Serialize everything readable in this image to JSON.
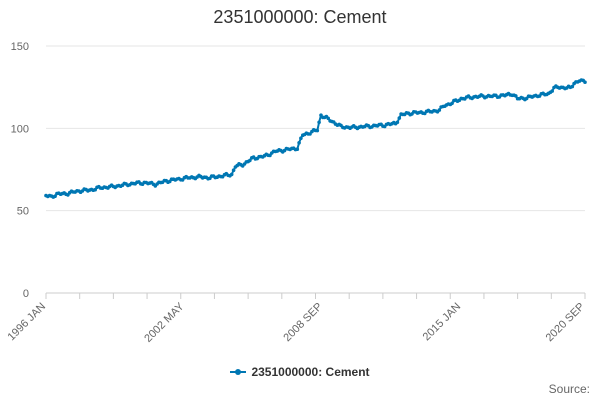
{
  "chart_data": {
    "type": "line",
    "title": "2351000000: Cement",
    "xlabel": "",
    "ylabel": "",
    "ylim": [
      0,
      150
    ],
    "yticks": [
      0,
      50,
      100,
      150
    ],
    "xticks": [
      "1996 JAN",
      "2002 MAY",
      "2008 SEP",
      "2015 JAN",
      "2020 SEP"
    ],
    "x_range": [
      "1996-01",
      "2020-09"
    ],
    "grid": true,
    "legend_placement": "bottom",
    "series": [
      {
        "name": "2351000000: Cement",
        "color": "#0077b3",
        "marker": "circle",
        "points": [
          [
            "1996-01",
            59
          ],
          [
            "1996-04",
            58.5
          ],
          [
            "1996-07",
            60
          ],
          [
            "1997-01",
            60.5
          ],
          [
            "1997-07",
            62
          ],
          [
            "1998-01",
            62.5
          ],
          [
            "1998-07",
            64
          ],
          [
            "1999-01",
            64.5
          ],
          [
            "1999-07",
            65.5
          ],
          [
            "2000-01",
            66.5
          ],
          [
            "2000-07",
            67
          ],
          [
            "2001-01",
            66
          ],
          [
            "2001-07",
            68
          ],
          [
            "2002-01",
            69
          ],
          [
            "2002-07",
            70
          ],
          [
            "2003-01",
            70.5
          ],
          [
            "2003-07",
            70
          ],
          [
            "2004-01",
            71
          ],
          [
            "2004-07",
            72
          ],
          [
            "2004-09",
            77
          ],
          [
            "2005-01",
            78
          ],
          [
            "2005-07",
            82
          ],
          [
            "2006-01",
            83
          ],
          [
            "2006-07",
            86
          ],
          [
            "2007-01",
            87
          ],
          [
            "2007-07",
            88
          ],
          [
            "2007-10",
            96
          ],
          [
            "2008-01",
            97
          ],
          [
            "2008-06",
            99
          ],
          [
            "2008-08",
            108
          ],
          [
            "2009-01",
            105
          ],
          [
            "2009-07",
            101
          ],
          [
            "2010-01",
            100.5
          ],
          [
            "2010-07",
            101
          ],
          [
            "2011-01",
            101.5
          ],
          [
            "2011-07",
            102
          ],
          [
            "2012-01",
            103
          ],
          [
            "2012-04",
            108
          ],
          [
            "2012-07",
            109
          ],
          [
            "2013-01",
            109.5
          ],
          [
            "2013-07",
            110
          ],
          [
            "2014-01",
            111
          ],
          [
            "2014-04",
            114
          ],
          [
            "2014-07",
            115
          ],
          [
            "2015-01",
            118
          ],
          [
            "2015-07",
            119
          ],
          [
            "2016-01",
            119.5
          ],
          [
            "2016-07",
            119.5
          ],
          [
            "2017-01",
            120
          ],
          [
            "2017-05",
            121
          ],
          [
            "2017-08",
            118
          ],
          [
            "2018-01",
            118.5
          ],
          [
            "2018-07",
            120
          ],
          [
            "2019-01",
            121
          ],
          [
            "2019-04",
            124.5
          ],
          [
            "2019-07",
            125
          ],
          [
            "2020-01",
            124.5
          ],
          [
            "2020-03",
            127.5
          ],
          [
            "2020-06",
            129
          ],
          [
            "2020-09",
            128
          ]
        ]
      }
    ]
  },
  "source_label": "Source:"
}
